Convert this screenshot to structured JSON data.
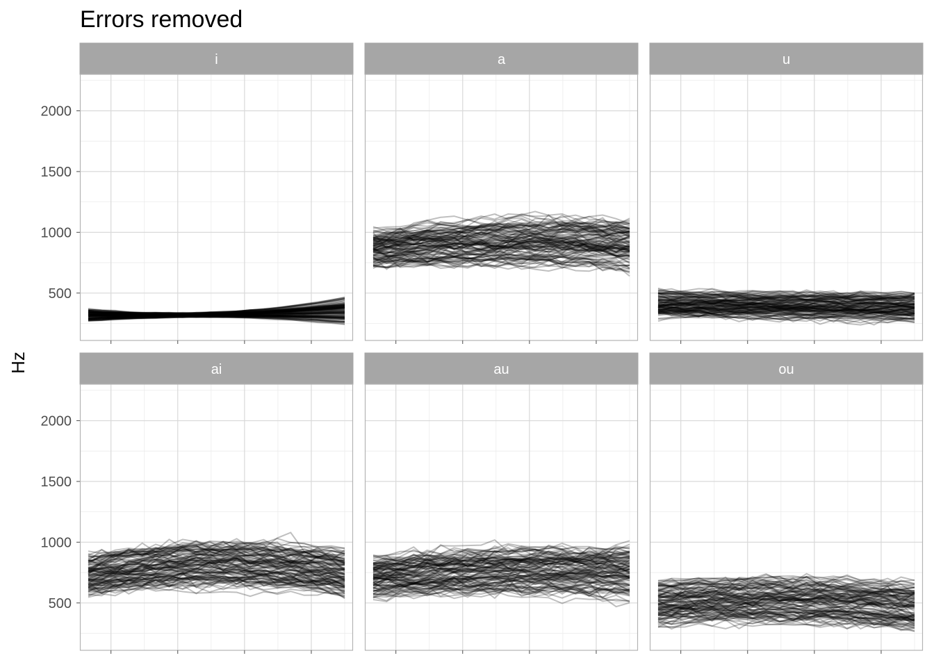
{
  "chart_data": {
    "type": "line",
    "title": "Errors removed",
    "ylabel": "Hz",
    "xlabel": "",
    "ylim": [
      110,
      2300
    ],
    "xlim": [
      0.04,
      1.0
    ],
    "y_ticks": [
      500,
      1000,
      1500,
      2000
    ],
    "y_tick_labels": [
      "500",
      "1000",
      "1500",
      "2000"
    ],
    "x_tick_labels_shown": false,
    "grid": true,
    "line_color": "#000000",
    "line_opacity": 0.25,
    "strip_color": "#a6a6a6",
    "facet_layout": "2 rows x 3 columns",
    "panels": [
      {
        "label": "i",
        "start": [
          265,
          380
        ],
        "mid": [
          300,
          350
        ],
        "end": [
          235,
          490
        ]
      },
      {
        "label": "a",
        "start": [
          680,
          1050
        ],
        "mid": [
          690,
          1140
        ],
        "end": [
          660,
          1140
        ]
      },
      {
        "label": "u",
        "start": [
          280,
          540
        ],
        "mid": [
          270,
          525
        ],
        "end": [
          250,
          525
        ]
      },
      {
        "label": "ai",
        "start": [
          530,
          910
        ],
        "mid": [
          570,
          1050
        ],
        "end": [
          500,
          980
        ]
      },
      {
        "label": "au",
        "start": [
          500,
          900
        ],
        "mid": [
          510,
          980
        ],
        "end": [
          490,
          990
        ]
      },
      {
        "label": "ou",
        "start": [
          280,
          720
        ],
        "mid": [
          300,
          730
        ],
        "end": [
          250,
          700
        ]
      }
    ]
  }
}
